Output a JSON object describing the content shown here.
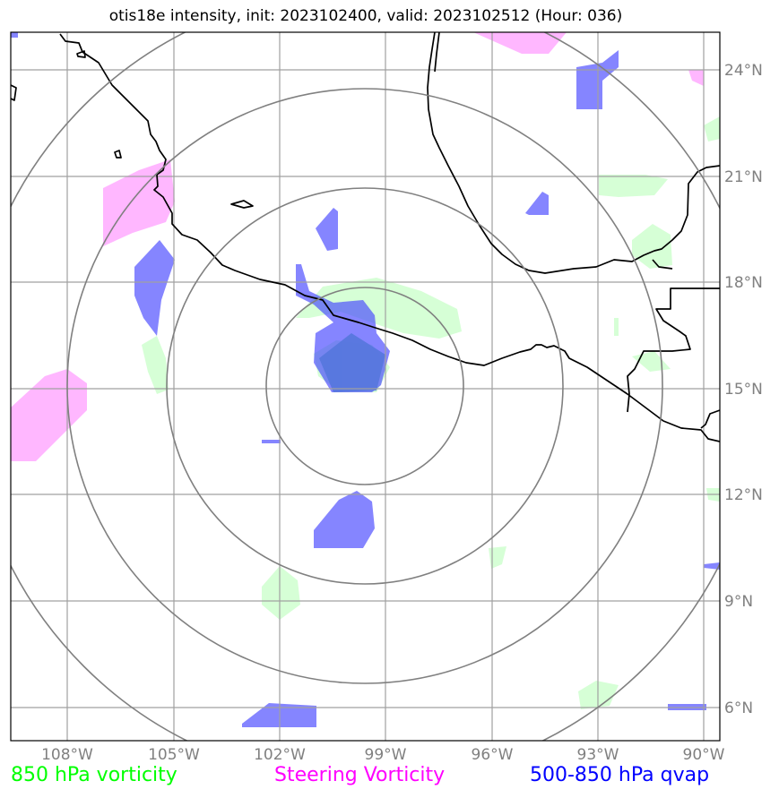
{
  "title": "otis18e intensity, init: 2023102400, valid: 2023102512 (Hour: 036)",
  "colors": {
    "vorticity_850": "#ccffcc",
    "steering_vorticity": "#ffaaff",
    "qvap": "#4444ff",
    "overlap": "#5577dd",
    "coast": "#000000",
    "grid": "#a0a0a0",
    "range_rings": "#808080"
  },
  "axes": {
    "lon_ticks": [
      "108°W",
      "105°W",
      "102°W",
      "99°W",
      "96°W",
      "93°W",
      "90°W"
    ],
    "lat_ticks": [
      "24°N",
      "21°N",
      "18°N",
      "15°N",
      "12°N",
      "9°N",
      "6°N"
    ]
  },
  "legend": {
    "vorticity_850": "850 hPa vorticity",
    "steering": "Steering Vorticity",
    "qvap": "500-850 hPa qvap"
  }
}
